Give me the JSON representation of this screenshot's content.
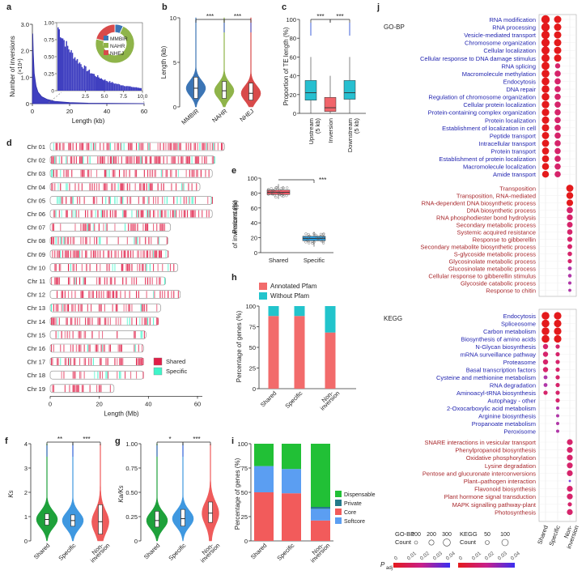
{
  "panels": {
    "a": {
      "letter": "a",
      "ylabel": "Number of inversions",
      "yunit": "(×10⁴)",
      "xlabel": "Length (kb)",
      "xticks": [
        "0",
        "20",
        "40",
        "60"
      ],
      "yticks": [
        "0",
        "1.0",
        "2.0",
        "3.0"
      ],
      "inset_yticks": [
        "0",
        "0.25",
        "0.50",
        "0.75",
        "1.00"
      ],
      "inset_xticks": [
        "2.5",
        "5.0",
        "7.5",
        "10.0"
      ],
      "donut": {
        "legend": [
          "MMBIR",
          "NAHR",
          "NHEJ"
        ],
        "fractions": [
          0.07,
          0.72,
          0.21
        ],
        "colors": [
          "#3c75b5",
          "#8fb44a",
          "#d84a4a"
        ]
      }
    },
    "b": {
      "letter": "b",
      "ylabel": "Length (kb)",
      "yticks": [
        "0",
        "5",
        "10"
      ],
      "groups": [
        "MMBIR",
        "NAHR",
        "NHEJ"
      ],
      "colors": [
        "#3c75b5",
        "#8fb44a",
        "#d84a4a"
      ],
      "sig": [
        "***",
        "***"
      ]
    },
    "c": {
      "letter": "c",
      "ylabel": "Proportion of TE length (%)",
      "yticks": [
        "0",
        "20",
        "40",
        "60",
        "80",
        "100"
      ],
      "groups": [
        "Upstream\n(5 kb)",
        "Inversion",
        "Downstream\n(5 kb)"
      ],
      "colors": [
        "#27bfd0",
        "#f1646a",
        "#27bfd0"
      ],
      "sig": [
        "***",
        "***"
      ]
    },
    "d": {
      "letter": "d",
      "xlabel": "Length (Mb)",
      "xticks": [
        "0",
        "20",
        "40",
        "60"
      ],
      "chromosomes": [
        {
          "name": "Chr 01",
          "length": 71
        },
        {
          "name": "Chr 02",
          "length": 67
        },
        {
          "name": "Chr 03",
          "length": 66
        },
        {
          "name": "Chr 04",
          "length": 61
        },
        {
          "name": "Chr 05",
          "length": 66
        },
        {
          "name": "Chr 06",
          "length": 66
        },
        {
          "name": "Chr 07",
          "length": 49
        },
        {
          "name": "Chr 08",
          "length": 48
        },
        {
          "name": "Chr 09",
          "length": 48
        },
        {
          "name": "Chr 10",
          "length": 52
        },
        {
          "name": "Chr 11",
          "length": 47
        },
        {
          "name": "Chr 12",
          "length": 53
        },
        {
          "name": "Chr 13",
          "length": 45
        },
        {
          "name": "Chr 14",
          "length": 44
        },
        {
          "name": "Chr 15",
          "length": 39
        },
        {
          "name": "Chr 16",
          "length": 38
        },
        {
          "name": "Chr 17",
          "length": 38
        },
        {
          "name": "Chr 18",
          "length": 38
        },
        {
          "name": "Chr 19",
          "length": 26
        }
      ],
      "legend": [
        "Shared",
        "Specific"
      ],
      "colors": [
        "#e01f48",
        "#3ff5c9"
      ]
    },
    "e": {
      "letter": "e",
      "ylabel": "Percentage\nof inversions (%)",
      "yticks": [
        "0",
        "20",
        "40",
        "60",
        "80",
        "100"
      ],
      "groups": [
        "Shared",
        "Specific"
      ],
      "colors": [
        "#ef5b68",
        "#2e9ad8"
      ],
      "sig": "***"
    },
    "h": {
      "letter": "h",
      "ylabel": "Percentage of genes (%)",
      "yticks": [
        "0",
        "25",
        "50",
        "75",
        "100"
      ],
      "legend": [
        "Annotated Pfam",
        "Without Pfam"
      ],
      "colors": [
        "#f26b6b",
        "#22c4cc"
      ],
      "categories": [
        "Shared",
        "Specific",
        "Non-\ninversion"
      ]
    },
    "f": {
      "letter": "f",
      "ylabel": "Ks",
      "yticks": [
        "0",
        "1",
        "2",
        "3",
        "4"
      ],
      "groups": [
        "Shared",
        "Specific",
        "Non-\ninversion"
      ],
      "sig": [
        "**",
        "***"
      ]
    },
    "g": {
      "letter": "g",
      "ylabel": "Ka/Ks",
      "yticks": [
        "0",
        "0.25",
        "0.50",
        "0.75",
        "1.00"
      ],
      "groups": [
        "Shared",
        "Specific",
        "Non-\ninversion"
      ],
      "sig": [
        "*",
        "***"
      ]
    },
    "i": {
      "letter": "i",
      "ylabel": "Percentage of genes (%)",
      "yticks": [
        "0",
        "25",
        "50",
        "75",
        "100"
      ],
      "legend": [
        "Dispensable",
        "Private",
        "Core",
        "Softcore"
      ],
      "colors": [
        "#21c036",
        "#247a8a",
        "#f25b5b",
        "#5b9ef2"
      ],
      "categories": [
        "Shared",
        "Specific",
        "Non-\ninversion"
      ]
    },
    "j": {
      "letter": "j",
      "gobp_title": "GO-BP",
      "kegg_title": "KEGG",
      "columns": [
        "Shared",
        "Specific",
        "Non-\ninversion"
      ],
      "legend": {
        "gobp_label": "GO-BP",
        "kegg_label": "KEGG",
        "count_label": "Count",
        "gobp_counts": [
          "100",
          "200",
          "300"
        ],
        "kegg_counts": [
          "50",
          "100"
        ],
        "padj_label": "P",
        "padj_sub": "adj",
        "gobp_scale": [
          "0",
          "0.01",
          "0.02",
          "0.03",
          "0.04"
        ],
        "kegg_scale": [
          "0",
          "0.01",
          "0.02",
          "0.03",
          "0.04"
        ]
      },
      "gobp_blue": [
        "RNA modification",
        "RNA processing",
        "Vesicle-mediated transport",
        "Chromosome organization",
        "Cellular localization",
        "Cellular response to DNA damage stimulus",
        "RNA splicing",
        "Macromolecule methylation",
        "Endocytosis",
        "DNA repair",
        "Regulation of chromosome organization",
        "Cellular protein localization",
        "Protein-containing complex organization",
        "Protein localization",
        "Establishment of localization in cell",
        "Peptide transport",
        "Intracellular transport",
        "Protein transport",
        "Establishment of protein localization",
        "Macromolecule localization",
        "Amide transport"
      ],
      "gobp_red": [
        "Transposition",
        "Transposition, RNA-mediated",
        "RNA-dependent DNA biosynthetic process",
        "DNA biosynthetic process",
        "RNA phosphodiester bond hydrolysis",
        "Secondary metabolic process",
        "Systemic acquired resistance",
        "Response to gibberellin",
        "Secondary metabolite biosynthetic process",
        "S-glycoside metabolic process",
        "Glycosinolate metabolic process",
        "Glucosinolate metabolic process",
        "Cellular response to gibberellin stimulus",
        "Glycoside catabolic process",
        "Response to chitin"
      ],
      "kegg_blue": [
        "Endocytosis",
        "Spliceosome",
        "Carbon metabolism",
        "Biosynthesis of amino acids",
        "N-Glycan biosynthesis",
        "mRNA surveillance pathway",
        "Proteasome",
        "Basal transcription factors",
        "Cysteine and methionine metabolism",
        "RNA degradation",
        "Aminoacyl-tRNA biosynthesis",
        "Autophagy - other",
        "2-Oxocarboxylic acid metabolism",
        "Arginine biosynthesis",
        "Propanoate metabolism",
        "Peroxisome"
      ],
      "kegg_red": [
        "SNARE interactions in vesicular transport",
        "Phenylpropanoid biosynthesis",
        "Oxidative phosphorylation",
        "Lysine degradation",
        "Pentose and glucuronate interconversions",
        "Plant–pathogen interaction",
        "Flavonoid biosynthesis",
        "Plant hormone signal transduction",
        "MAPK signalling pathway-plant",
        "Photosynthesis"
      ]
    }
  },
  "chart_data": [
    {
      "type": "area",
      "panel": "a",
      "title": "",
      "xlabel": "Length (kb)",
      "ylabel": "Number of inversions (×10⁴)",
      "xlim": [
        0,
        60
      ],
      "ylim": [
        0,
        3.4
      ],
      "x": [
        0.2,
        0.5,
        1,
        2,
        3,
        5,
        8,
        12,
        20,
        30,
        45,
        60
      ],
      "y": [
        3.0,
        2.2,
        1.3,
        0.75,
        0.5,
        0.3,
        0.18,
        0.1,
        0.05,
        0.02,
        0.01,
        0.005
      ]
    },
    {
      "type": "pie",
      "panel": "a",
      "title": "",
      "categories": [
        "MMBIR",
        "NAHR",
        "NHEJ"
      ],
      "values": [
        0.07,
        0.72,
        0.21
      ]
    },
    {
      "type": "scatter",
      "panel": "b",
      "title": "",
      "categories": [
        "MMBIR",
        "NAHR",
        "NHEJ"
      ],
      "median": [
        2.2,
        1.9,
        1.6
      ],
      "q1": [
        1.0,
        1.0,
        0.8
      ],
      "q3": [
        3.5,
        3.0,
        2.8
      ],
      "ylim": [
        0,
        10.5
      ]
    },
    {
      "type": "bar",
      "panel": "c",
      "title": "",
      "categories": [
        "Upstream (5 kb)",
        "Inversion",
        "Downstream (5 kb)"
      ],
      "median": [
        22,
        6,
        22
      ],
      "q1": [
        14,
        2,
        15
      ],
      "q3": [
        35,
        17,
        35
      ],
      "whisker_low": [
        0,
        0,
        0
      ],
      "whisker_high": [
        60,
        40,
        60
      ],
      "ylim": [
        0,
        100
      ]
    },
    {
      "type": "bar",
      "panel": "e",
      "title": "",
      "categories": [
        "Shared",
        "Specific"
      ],
      "median": [
        81,
        19
      ],
      "q1": [
        78,
        16
      ],
      "q3": [
        84,
        22
      ],
      "whisker_low": [
        72,
        8
      ],
      "whisker_high": [
        92,
        28
      ],
      "ylim": [
        0,
        100
      ]
    },
    {
      "type": "bar",
      "panel": "h",
      "title": "",
      "categories": [
        "Shared",
        "Specific",
        "Non-inversion"
      ],
      "series": [
        {
          "name": "Annotated Pfam",
          "values": [
            88,
            88,
            68
          ]
        },
        {
          "name": "Without Pfam",
          "values": [
            12,
            12,
            32
          ]
        }
      ],
      "ylim": [
        0,
        100
      ]
    },
    {
      "type": "scatter",
      "panel": "f",
      "title": "",
      "categories": [
        "Shared",
        "Specific",
        "Non-inversion"
      ],
      "median": [
        0.95,
        0.9,
        0.85
      ],
      "q1": [
        0.7,
        0.65,
        0.3
      ],
      "q3": [
        1.2,
        1.15,
        1.6
      ],
      "ylim": [
        0,
        4.3
      ]
    },
    {
      "type": "scatter",
      "panel": "g",
      "title": "",
      "categories": [
        "Shared",
        "Specific",
        "Non-inversion"
      ],
      "median": [
        0.22,
        0.24,
        0.3
      ],
      "q1": [
        0.15,
        0.16,
        0.2
      ],
      "q3": [
        0.32,
        0.34,
        0.42
      ],
      "ylim": [
        0,
        1.05
      ]
    },
    {
      "type": "bar",
      "panel": "i",
      "title": "",
      "categories": [
        "Shared",
        "Specific",
        "Non-inversion"
      ],
      "series": [
        {
          "name": "Core",
          "values": [
            50,
            49,
            21
          ]
        },
        {
          "name": "Softcore",
          "values": [
            27,
            25,
            12
          ]
        },
        {
          "name": "Private",
          "values": [
            0,
            0,
            2
          ]
        },
        {
          "name": "Dispensable",
          "values": [
            23,
            26,
            65
          ]
        }
      ],
      "ylim": [
        0,
        100
      ]
    },
    {
      "type": "scatter",
      "panel": "j",
      "title": "",
      "note": "dot size = gene count; colour = adjusted P",
      "x_categories": [
        "Shared",
        "Specific",
        "Non-inversion"
      ]
    }
  ]
}
